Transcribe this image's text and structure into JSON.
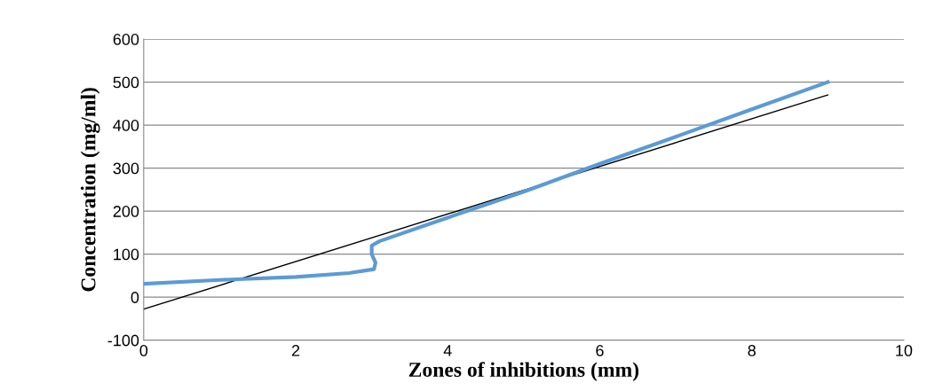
{
  "chart_data": {
    "type": "line",
    "xlabel": "Zones of inhibitions (mm)",
    "ylabel": "Concentration (mg/ml)",
    "xlim": [
      0,
      10
    ],
    "xticks": [
      0,
      2,
      4,
      6,
      8,
      10
    ],
    "ylim": [
      -100,
      600
    ],
    "yticks": [
      -100,
      0,
      100,
      200,
      300,
      400,
      500,
      600
    ],
    "grid": "y",
    "legend": false,
    "marker": "none",
    "line_style": "solid",
    "series": [
      {
        "color": "#5b9bd5",
        "x": [
          0,
          1,
          2,
          2.7,
          3.03,
          3.05,
          3.0,
          3.0,
          3.1,
          4,
          5,
          6,
          7,
          8,
          9
        ],
        "values": [
          31,
          40,
          47,
          56,
          65,
          80,
          100,
          120,
          130,
          185,
          245,
          310,
          373,
          437,
          500
        ]
      },
      {
        "color": "#000000",
        "x": [
          0,
          9
        ],
        "values": [
          -28,
          470
        ]
      }
    ]
  }
}
